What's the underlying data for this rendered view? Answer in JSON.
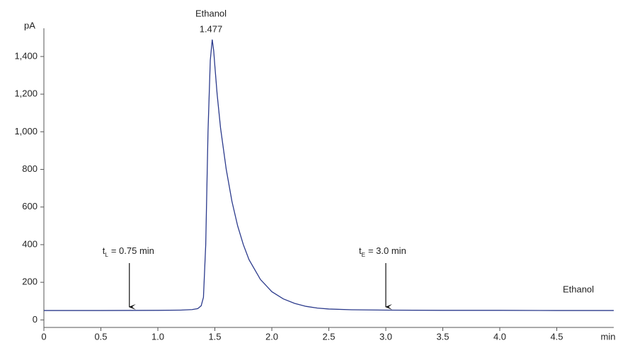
{
  "chart_data": {
    "type": "line",
    "peak_label": {
      "name": "Ethanol",
      "time": "1.477"
    },
    "y_unit": "pA",
    "x_unit": "min",
    "trace_label": "Ethanol",
    "annotations": [
      {
        "text": "t",
        "sub": "L",
        "rest": "= 0.75 min",
        "x": 0.75
      },
      {
        "text": "t",
        "sub": "E",
        "rest": "= 3.0 min",
        "x": 3.0
      }
    ],
    "x": [
      0,
      0.5,
      1.0,
      1.2,
      1.3,
      1.35,
      1.38,
      1.4,
      1.42,
      1.44,
      1.46,
      1.477,
      1.49,
      1.5,
      1.52,
      1.55,
      1.6,
      1.65,
      1.7,
      1.75,
      1.8,
      1.9,
      2.0,
      2.1,
      2.2,
      2.3,
      2.4,
      2.5,
      2.7,
      3.0,
      3.5,
      4.0,
      4.5,
      5.0
    ],
    "series": [
      {
        "name": "Ethanol",
        "color": "#2b3a8c",
        "values": [
          50,
          50,
          51,
          52,
          55,
          60,
          75,
          120,
          400,
          1000,
          1380,
          1490,
          1430,
          1350,
          1200,
          1020,
          800,
          630,
          500,
          400,
          320,
          215,
          150,
          112,
          88,
          72,
          63,
          58,
          54,
          52,
          51,
          51,
          50,
          50
        ]
      }
    ],
    "xlim": [
      0,
      5.0
    ],
    "ylim": [
      -40,
      1550
    ],
    "xticks": [
      0,
      0.5,
      {
        "value": 1,
        "label": "1.0"
      },
      1.5,
      {
        "value": 2,
        "label": "2.0"
      },
      2.5,
      {
        "value": 3,
        "label": "3.0"
      },
      3.5,
      {
        "value": 4,
        "label": "4.0"
      },
      4.5
    ],
    "yticks": [
      0,
      200,
      400,
      600,
      800,
      {
        "value": 1000,
        "label": "1,000"
      },
      {
        "value": 1200,
        "label": "1,200"
      },
      {
        "value": 1400,
        "label": "1,400"
      }
    ]
  }
}
